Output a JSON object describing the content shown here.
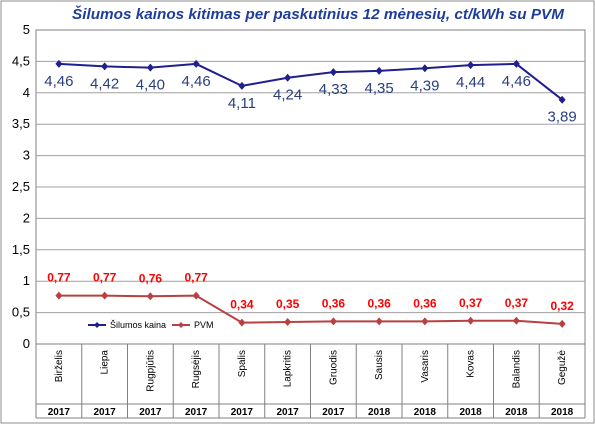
{
  "chart_data": {
    "type": "line",
    "title": "Šilumos kainos kitimas per paskutinius 12 mėnesių, ct/kWh su PVM",
    "categories": [
      "Birželis",
      "Liepa",
      "Rugpjūtis",
      "Rugsėjis",
      "Spalis",
      "Lapkritis",
      "Gruodis",
      "Sausis",
      "Vasaris",
      "Kovas",
      "Balandis",
      "Gegužė"
    ],
    "years": [
      "2017",
      "2017",
      "2017",
      "2017",
      "2017",
      "2017",
      "2017",
      "2018",
      "2018",
      "2018",
      "2018",
      "2018"
    ],
    "series": [
      {
        "name": "Šilumos kaina",
        "values": [
          4.46,
          4.42,
          4.4,
          4.46,
          4.11,
          4.24,
          4.33,
          4.35,
          4.39,
          4.44,
          4.46,
          3.89
        ],
        "labels": [
          "4,46",
          "4,42",
          "4,40",
          "4,46",
          "4,11",
          "4,24",
          "4,33",
          "4,35",
          "4,39",
          "4,44",
          "4,46",
          "3,89"
        ],
        "color": "#1f1f8f",
        "label_color": "#2a3f7f"
      },
      {
        "name": "PVM",
        "values": [
          0.77,
          0.77,
          0.76,
          0.77,
          0.34,
          0.35,
          0.36,
          0.36,
          0.36,
          0.37,
          0.37,
          0.32
        ],
        "labels": [
          "0,77",
          "0,77",
          "0,76",
          "0,77",
          "0,34",
          "0,35",
          "0,36",
          "0,36",
          "0,36",
          "0,37",
          "0,37",
          "0,32"
        ],
        "color": "#b84040",
        "label_color": "#ff0000"
      }
    ],
    "ylim": [
      0,
      5
    ],
    "yticks": [
      "0",
      "0,5",
      "1",
      "1,5",
      "2",
      "2,5",
      "3",
      "3,5",
      "4",
      "4,5",
      "5"
    ],
    "grid": true,
    "legend": "bottom-left",
    "title_color": "#1f3d9a"
  }
}
